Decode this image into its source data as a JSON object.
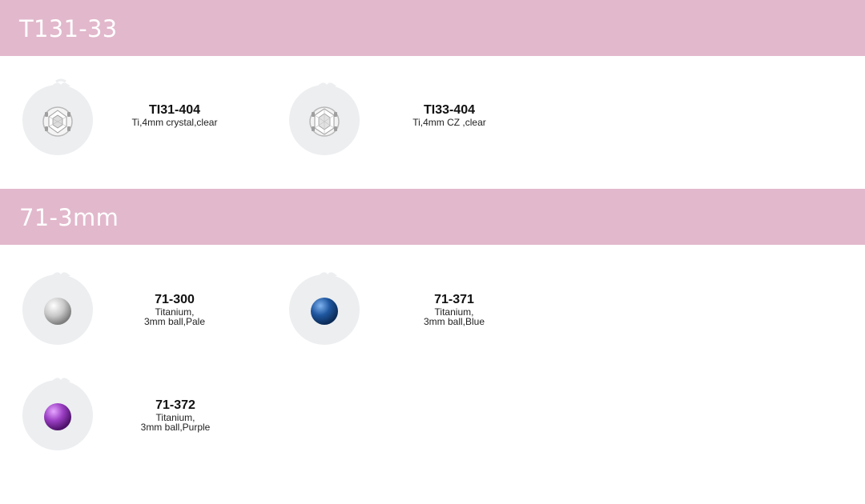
{
  "sections": [
    {
      "title": "T131-33",
      "items": [
        {
          "sku": "TI31-404",
          "desc": "Ti,4mm crystal,clear",
          "gem": "crystal"
        },
        {
          "sku": "TI33-404",
          "desc": "Ti,4mm CZ ,clear",
          "gem": "cz"
        }
      ]
    },
    {
      "title": "71-3mm",
      "items": [
        {
          "sku": "71-300",
          "desc": "Titanium,\n3mm ball,Pale",
          "gem": "ball-pale"
        },
        {
          "sku": "71-371",
          "desc": "Titanium,\n3mm ball,Blue",
          "gem": "ball-blue"
        },
        {
          "sku": "71-372",
          "desc": "Titanium,\n3mm ball,Purple",
          "gem": "ball-purple"
        }
      ]
    }
  ],
  "colors": {
    "header_bg": "#e2b8cc",
    "thumb_bg": "#eceef0",
    "ball_pale": "#c8c8c8",
    "ball_blue": "#1f57a0",
    "ball_purple": "#9b3fc4"
  }
}
